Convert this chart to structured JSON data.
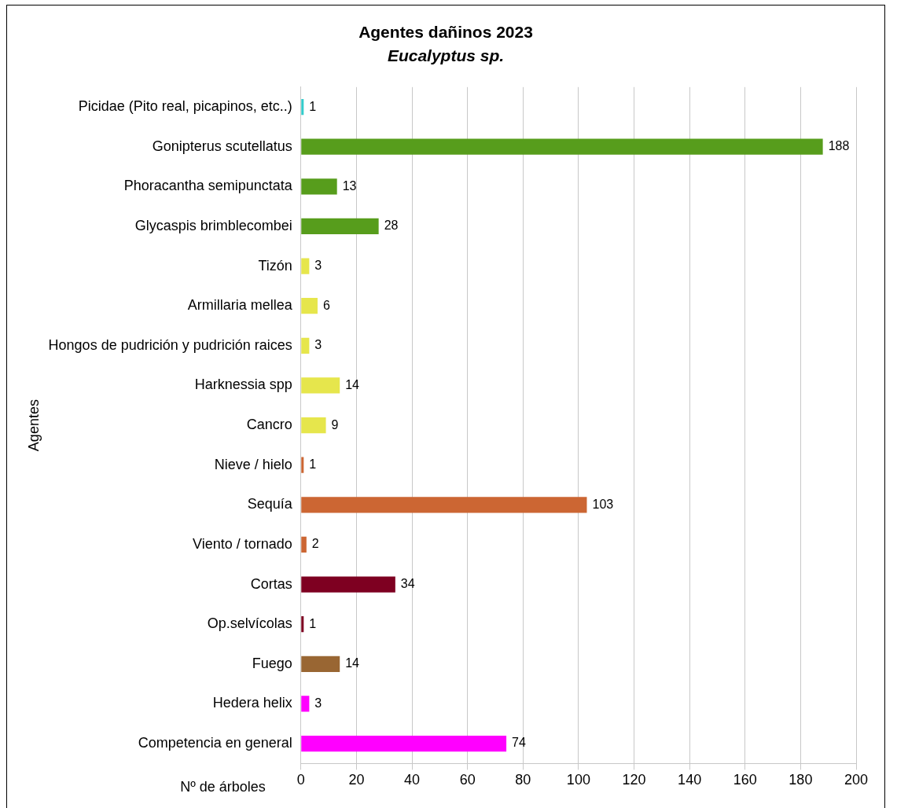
{
  "chart_data": {
    "type": "bar",
    "orientation": "horizontal",
    "title": "Agentes dañinos 2023",
    "subtitle": "Eucalyptus sp.",
    "xlabel": "Nº de árboles",
    "ylabel": "Agentes",
    "categories": [
      "Picidae (Pito real, picapinos, etc..)",
      "Gonipterus scutellatus",
      "Phoracantha semipunctata",
      "Glycaspis brimblecombei",
      "Tizón",
      "Armillaria mellea",
      "Hongos de pudrición y pudrición raices",
      "Harknessia spp",
      "Cancro",
      "Nieve / hielo",
      "Sequía",
      "Viento / tornado",
      "Cortas",
      "Op.selvícolas",
      "Fuego",
      "Hedera helix",
      "Competencia en general"
    ],
    "values": [
      1,
      188,
      13,
      28,
      3,
      6,
      3,
      14,
      9,
      1,
      103,
      2,
      34,
      1,
      14,
      3,
      74
    ],
    "colors": [
      "#33cccc",
      "#579d1c",
      "#579d1c",
      "#579d1c",
      "#e6e64c",
      "#e6e64c",
      "#e6e64c",
      "#e6e64c",
      "#e6e64c",
      "#cc6633",
      "#cc6633",
      "#cc6633",
      "#7e0021",
      "#7e0021",
      "#996633",
      "#ff00ff",
      "#ff00ff"
    ],
    "xlim": [
      0,
      200
    ],
    "xticks": [
      0,
      20,
      40,
      60,
      80,
      100,
      120,
      140,
      160,
      180,
      200
    ],
    "grid": "x",
    "data_labels": true,
    "legend": false
  }
}
